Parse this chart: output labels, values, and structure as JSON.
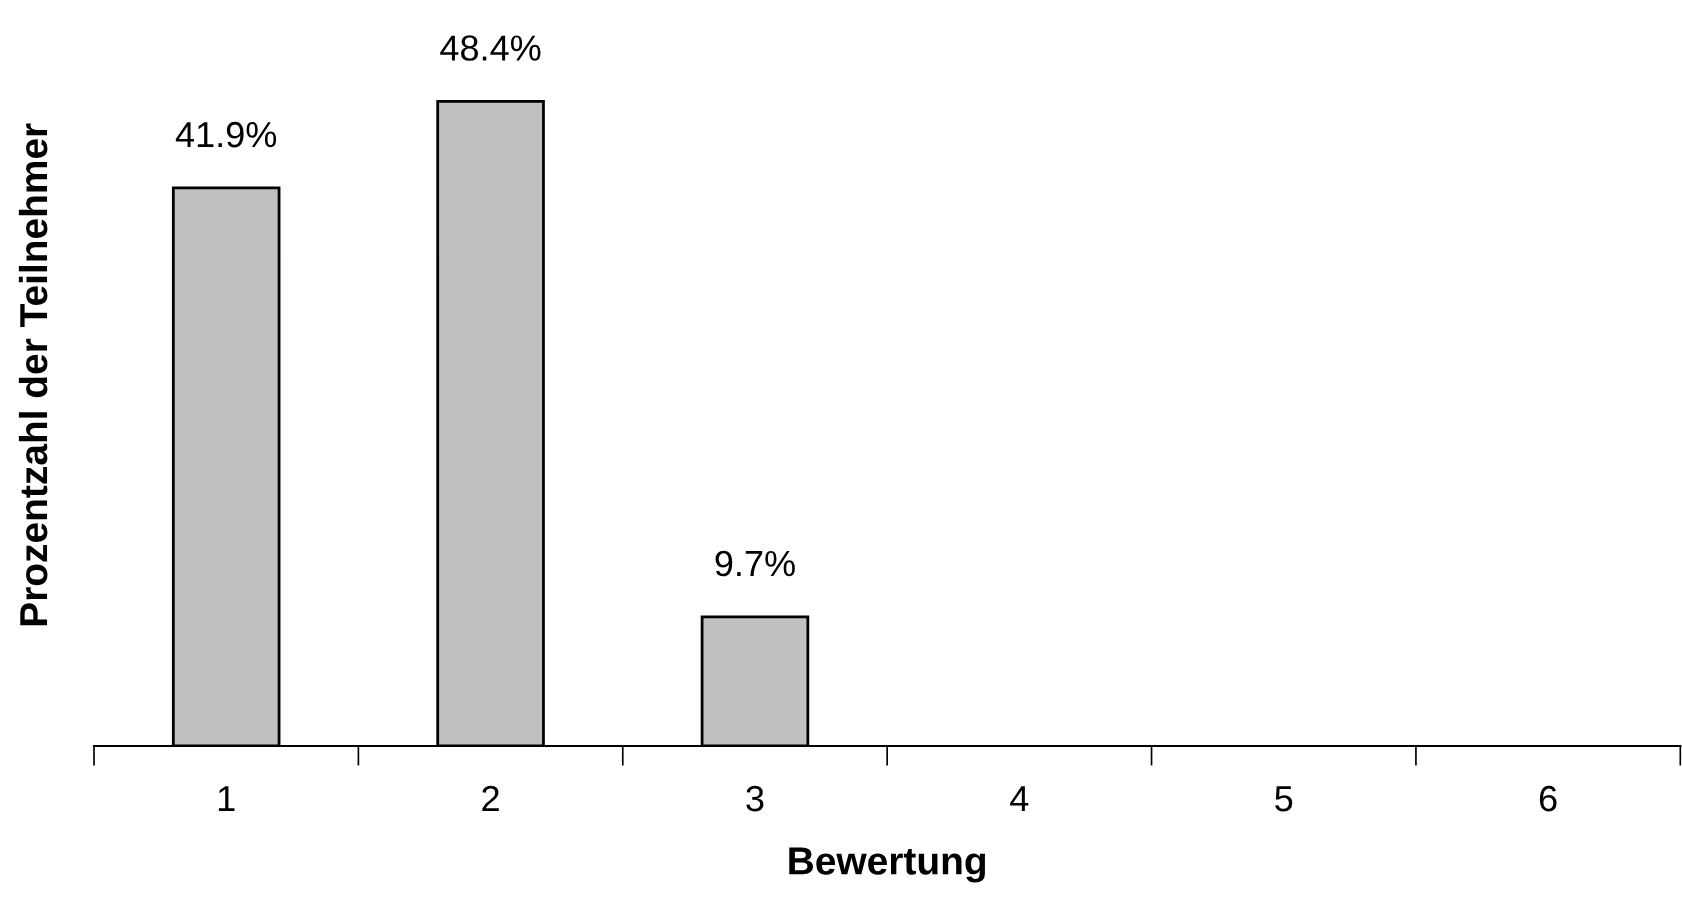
{
  "chart_data": {
    "type": "bar",
    "xlabel": "Bewertung",
    "ylabel": "Prozentzahl der Teilnehmer",
    "categories": [
      "1",
      "2",
      "3",
      "4",
      "5",
      "6"
    ],
    "values": [
      41.9,
      48.4,
      9.7,
      0,
      0,
      0
    ],
    "value_labels": [
      "41.9%",
      "48.4%",
      "9.7%",
      null,
      null,
      null
    ],
    "color": "#c0c0c0",
    "grid": false,
    "legend": false
  }
}
